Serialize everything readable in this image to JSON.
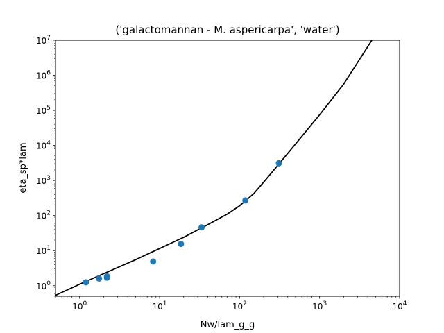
{
  "chart_data": {
    "type": "scatter",
    "title": "('galactomannan - M. aspericarpa', 'water')",
    "xlabel": "Nw/lam_g_g",
    "ylabel": "eta_sp*lam",
    "xscale": "log",
    "yscale": "log",
    "xlim": [
      0.5,
      10000
    ],
    "ylim": [
      0.5,
      10000000
    ],
    "x_ticks": [
      {
        "base": "10",
        "exp": "0",
        "value": 1
      },
      {
        "base": "10",
        "exp": "1",
        "value": 10
      },
      {
        "base": "10",
        "exp": "2",
        "value": 100
      },
      {
        "base": "10",
        "exp": "3",
        "value": 1000
      },
      {
        "base": "10",
        "exp": "4",
        "value": 10000
      }
    ],
    "y_ticks": [
      {
        "base": "10",
        "exp": "0",
        "value": 1
      },
      {
        "base": "10",
        "exp": "1",
        "value": 10
      },
      {
        "base": "10",
        "exp": "2",
        "value": 100
      },
      {
        "base": "10",
        "exp": "3",
        "value": 1000
      },
      {
        "base": "10",
        "exp": "4",
        "value": 10000
      },
      {
        "base": "10",
        "exp": "5",
        "value": 100000
      },
      {
        "base": "10",
        "exp": "6",
        "value": 1000000
      },
      {
        "base": "10",
        "exp": "7",
        "value": 10000000
      }
    ],
    "grid": false,
    "scatter_color": "#1f77b4",
    "line_color": "#000000",
    "points": [
      {
        "x": 1.2,
        "y": 1.25
      },
      {
        "x": 1.75,
        "y": 1.6
      },
      {
        "x": 2.2,
        "y": 1.7
      },
      {
        "x": 2.2,
        "y": 1.85
      },
      {
        "x": 8.3,
        "y": 4.9
      },
      {
        "x": 18.5,
        "y": 15.5
      },
      {
        "x": 33.5,
        "y": 46
      },
      {
        "x": 118,
        "y": 270
      },
      {
        "x": 310,
        "y": 3100
      }
    ],
    "fit_line": [
      {
        "x": 0.5,
        "y": 0.53
      },
      {
        "x": 1,
        "y": 1.1
      },
      {
        "x": 2,
        "y": 2.2
      },
      {
        "x": 5,
        "y": 5.5
      },
      {
        "x": 10,
        "y": 11.5
      },
      {
        "x": 20,
        "y": 24
      },
      {
        "x": 40,
        "y": 55
      },
      {
        "x": 70,
        "y": 110
      },
      {
        "x": 100,
        "y": 190
      },
      {
        "x": 150,
        "y": 420
      },
      {
        "x": 200,
        "y": 900
      },
      {
        "x": 300,
        "y": 2700
      },
      {
        "x": 500,
        "y": 11000
      },
      {
        "x": 1000,
        "y": 75000
      },
      {
        "x": 2000,
        "y": 560000
      },
      {
        "x": 4500,
        "y": 10000000
      }
    ]
  }
}
